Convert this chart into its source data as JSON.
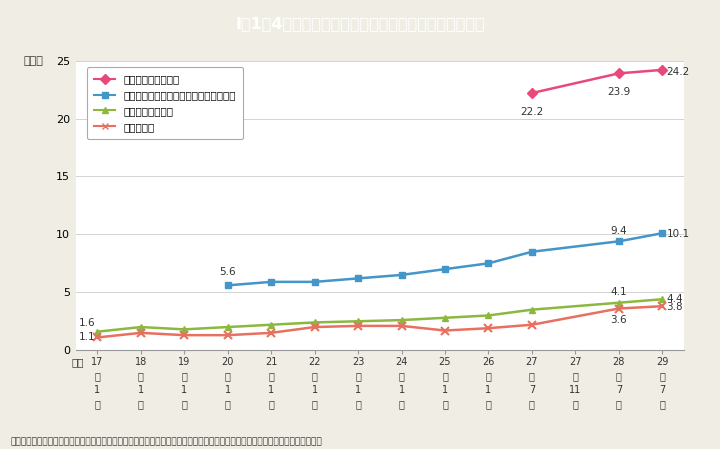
{
  "title": "I－1－4図　役職段階別国家公務員の女性の割合の推移",
  "ylabel": "（％）",
  "footnote": "（備考）内閣官房内閣人事局「女性国家公務員の登用状況及び国家公務員の育児休業等の取得状況のフォローアップ」より作成。",
  "x_label_top": "平成",
  "x_year": [
    "17",
    "18",
    "19",
    "20",
    "21",
    "22",
    "23",
    "24",
    "25",
    "26",
    "27",
    "27",
    "28",
    "29"
  ],
  "x_nen": [
    "年",
    "年",
    "年",
    "年",
    "年",
    "年",
    "年",
    "年",
    "年",
    "年",
    "年",
    "年",
    "年",
    "年"
  ],
  "x_month": [
    "1",
    "1",
    "1",
    "1",
    "1",
    "1",
    "1",
    "1",
    "1",
    "1",
    "7",
    "11",
    "7",
    "7"
  ],
  "x_tsuki": [
    "月",
    "月",
    "月",
    "月",
    "月",
    "月",
    "月",
    "月",
    "月",
    "月",
    "月",
    "月",
    "月",
    "月"
  ],
  "series": [
    {
      "name": "係長相当職（本省）",
      "color": "#e8497a",
      "marker": "D",
      "values": [
        null,
        null,
        null,
        null,
        null,
        null,
        null,
        null,
        null,
        null,
        22.2,
        null,
        23.9,
        24.2
      ]
    },
    {
      "name": "国の地方機関課長・本省課長補佐相当職",
      "color": "#4495c8",
      "marker": "s",
      "values": [
        null,
        null,
        null,
        5.6,
        5.9,
        5.9,
        6.2,
        6.5,
        7.0,
        7.5,
        8.5,
        null,
        9.4,
        10.1
      ]
    },
    {
      "name": "本省課室長相当職",
      "color": "#8cb840",
      "marker": "^",
      "values": [
        1.6,
        2.0,
        1.8,
        2.0,
        2.2,
        2.4,
        2.5,
        2.6,
        2.8,
        3.0,
        3.5,
        null,
        4.1,
        4.4
      ]
    },
    {
      "name": "指定職相当",
      "color": "#e87060",
      "marker": "x",
      "values": [
        1.1,
        1.5,
        1.3,
        1.3,
        1.5,
        2.0,
        2.1,
        2.1,
        1.7,
        1.9,
        2.2,
        null,
        3.6,
        3.8
      ]
    }
  ],
  "ylim": [
    0,
    25
  ],
  "yticks": [
    0,
    5,
    10,
    15,
    20,
    25
  ],
  "background_color": "#f0ede4",
  "plot_bg_color": "#ffffff",
  "title_bg_color": "#38bcd4",
  "title_text_color": "#ffffff",
  "grid_color": "#cccccc"
}
